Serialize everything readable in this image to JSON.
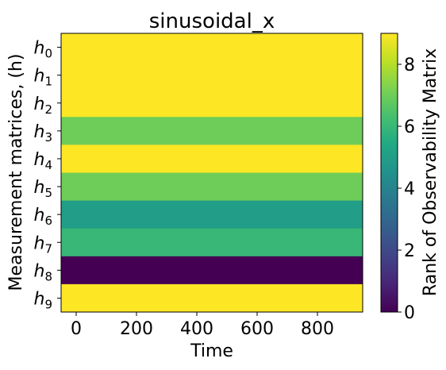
{
  "chart_data": {
    "type": "heatmap",
    "title": "sinusoidal_x",
    "xlabel": "Time",
    "ylabel": "Measurement matrices, (h)",
    "colorbar_label": "Rank of Observability Matrix",
    "rows": [
      {
        "base": "h",
        "sub": "0",
        "value": 9
      },
      {
        "base": "h",
        "sub": "1",
        "value": 9
      },
      {
        "base": "h",
        "sub": "2",
        "value": 9
      },
      {
        "base": "h",
        "sub": "3",
        "value": 7
      },
      {
        "base": "h",
        "sub": "4",
        "value": 9
      },
      {
        "base": "h",
        "sub": "5",
        "value": 7
      },
      {
        "base": "h",
        "sub": "6",
        "value": 5
      },
      {
        "base": "h",
        "sub": "7",
        "value": 6
      },
      {
        "base": "h",
        "sub": "8",
        "value": 0
      },
      {
        "base": "h",
        "sub": "9",
        "value": 9
      }
    ],
    "xlim": [
      -50,
      950
    ],
    "xticks": [
      0,
      200,
      400,
      600,
      800
    ],
    "colorbar_range": [
      0,
      9
    ],
    "colorbar_ticks": [
      0,
      2,
      4,
      6,
      8
    ],
    "colormap": "viridis",
    "grid": false
  }
}
